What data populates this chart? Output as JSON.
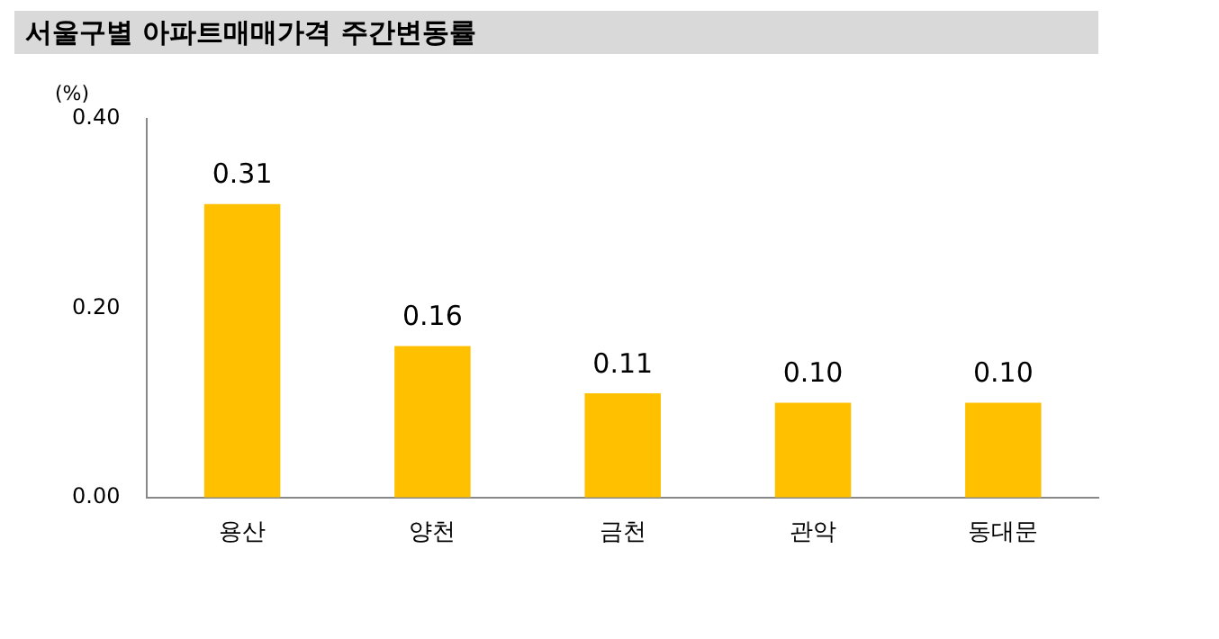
{
  "chart_data": {
    "type": "bar",
    "title": "서울구별 아파트매매가격 주간변동률",
    "ylabel": "(%)",
    "categories": [
      "용산",
      "양천",
      "금천",
      "관악",
      "동대문"
    ],
    "values": [
      0.31,
      0.16,
      0.11,
      0.1,
      0.1
    ],
    "value_labels": [
      "0.31",
      "0.16",
      "0.11",
      "0.10",
      "0.10"
    ],
    "color": "#ffc000",
    "ylim": [
      0,
      0.4
    ],
    "yticks": [
      {
        "value": 0,
        "label": "0.00"
      },
      {
        "value": 0.2,
        "label": "0.20"
      },
      {
        "value": 0.4,
        "label": "0.40"
      }
    ],
    "grid": false,
    "legend": false
  }
}
